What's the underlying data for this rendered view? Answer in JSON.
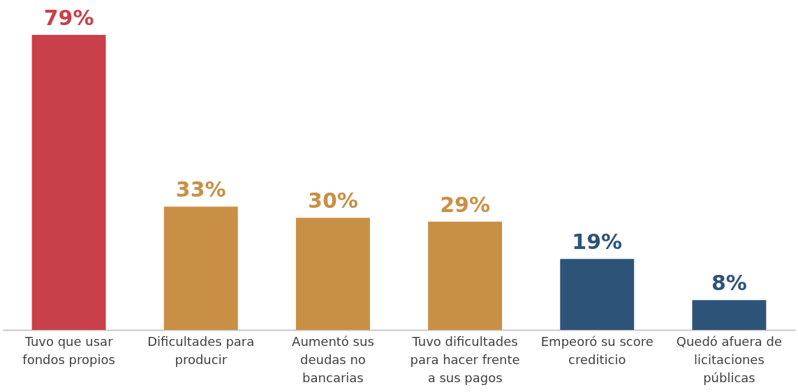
{
  "chart_data": {
    "type": "bar",
    "categories": [
      "Tuvo que usar fondos propios",
      "Dificultades para producir",
      "Aumentó sus deudas no bancarias",
      "Tuvo dificultades para hacer frente a sus pagos",
      "Empeoró su score crediticio",
      "Quedó afuera de licitaciones públicas"
    ],
    "values": [
      79,
      33,
      30,
      29,
      19,
      8
    ],
    "colors": [
      "#c9404a",
      "#c98f45",
      "#c98f45",
      "#c98f45",
      "#2d5478",
      "#2d5478"
    ],
    "value_labels": [
      "79%",
      "33%",
      "30%",
      "29%",
      "19%",
      "8%"
    ]
  }
}
